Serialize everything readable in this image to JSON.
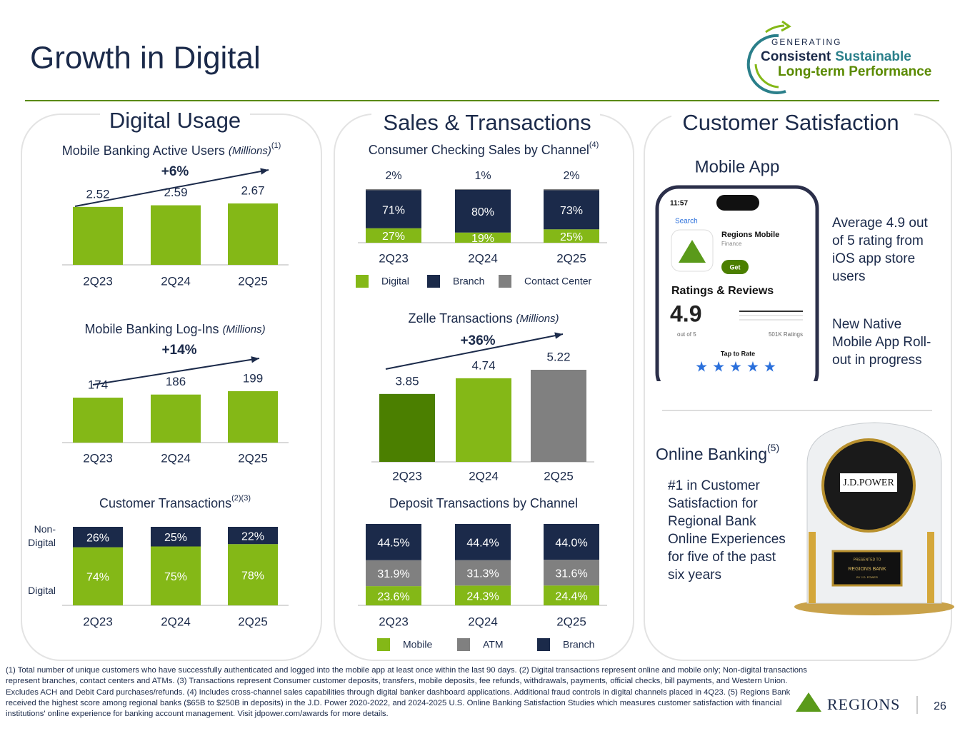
{
  "slide": {
    "title": "Growth in Digital",
    "logo": {
      "line1": "GENERATING",
      "word1": "Consistent",
      "word2": "Sustainable",
      "line3": "Long-term Performance"
    },
    "panels": [
      "Digital Usage",
      "Sales & Transactions",
      "Customer Satisfaction"
    ],
    "mobile_app": {
      "heading": "Mobile App",
      "time": "11:57",
      "back": "Search",
      "app_name": "Regions Mobile",
      "app_category": "Finance",
      "button": "Get",
      "ratings_heading": "Ratings & Reviews",
      "rating": "4.9",
      "out_of": "out of 5",
      "count": "501K Ratings",
      "tap": "Tap to Rate",
      "note1": "Average 4.9 out of 5 rating from iOS app store users",
      "note2": "New Native Mobile App Roll-out in progress"
    },
    "online_banking": {
      "heading": "Online Banking",
      "note": "(5)",
      "text": "#1 in Customer Satisfaction for Regional Bank Online Experiences for five of the past six years",
      "award_brand": "J.D.POWER",
      "plaque1": "PRESENTED TO",
      "plaque2": "REGIONS BANK",
      "plaque3": "BY J.D. POWER"
    },
    "footnote": "(1) Total number of unique customers who have successfully authenticated and logged into the mobile app at least once within the last 90 days. (2) Digital transactions represent online and mobile only; Non-digital transactions represent branches, contact centers and ATMs. (3) Transactions represent Consumer customer deposits, transfers, mobile deposits, fee refunds, withdrawals, payments, official checks, bill payments, and Western Union. Excludes ACH and Debit Card purchases/refunds. (4) Includes cross-channel sales capabilities through digital banker dashboard applications. Additional fraud controls in digital channels placed in 4Q23. (5) Regions Bank received the highest score among regional banks ($65B to $250B in deposits) in the J.D. Power 2020-2022, and 2024-2025 U.S. Online Banking Satisfaction Studies which measures customer satisfaction with financial institutions' online experience for banking account management. Visit jdpower.com/awards for more details.",
    "brand": "REGIONS",
    "page": "26"
  },
  "chart_data": [
    {
      "type": "bar",
      "title": "Mobile Banking Active Users",
      "subtitle": "(Millions)",
      "note": "(1)",
      "annotation": "+6%",
      "categories": [
        "2Q23",
        "2Q24",
        "2Q25"
      ],
      "values": [
        2.52,
        2.59,
        2.67
      ],
      "color": "#84b817"
    },
    {
      "type": "bar",
      "title": "Mobile Banking Log-Ins",
      "subtitle": "(Millions)",
      "annotation": "+14%",
      "categories": [
        "2Q23",
        "2Q24",
        "2Q25"
      ],
      "values": [
        174,
        186,
        199
      ],
      "color": "#84b817"
    },
    {
      "type": "stacked_bar",
      "title": "Customer Transactions",
      "note": "(2)(3)",
      "legend": "left",
      "categories": [
        "2Q23",
        "2Q24",
        "2Q25"
      ],
      "series": [
        {
          "name": "Digital",
          "color": "#84b817",
          "values": [
            74,
            75,
            78
          ],
          "value_labels": [
            "74%",
            "75%",
            "78%"
          ]
        },
        {
          "name": "Non-Digital",
          "color": "#1b2a4a",
          "values": [
            26,
            25,
            22
          ],
          "value_labels": [
            "26%",
            "25%",
            "22%"
          ]
        }
      ]
    },
    {
      "type": "stacked_bar",
      "title": "Consumer Checking Sales by Channel",
      "note": "(4)",
      "legend": "bottom",
      "categories": [
        "2Q23",
        "2Q24",
        "2Q25"
      ],
      "series": [
        {
          "name": "Digital",
          "color": "#84b817",
          "values": [
            27,
            19,
            25
          ],
          "value_labels": [
            "27%",
            "19%",
            "25%"
          ]
        },
        {
          "name": "Branch",
          "color": "#1b2a4a",
          "values": [
            71,
            80,
            73
          ],
          "value_labels": [
            "71%",
            "80%",
            "73%"
          ]
        },
        {
          "name": "Contact Center",
          "color": "#808080",
          "values": [
            2,
            1,
            2
          ],
          "value_labels": [
            "2%",
            "1%",
            "2%"
          ]
        }
      ]
    },
    {
      "type": "bar",
      "title": "Zelle Transactions",
      "subtitle": "(Millions)",
      "annotation": "+36%",
      "categories": [
        "2Q23",
        "2Q24",
        "2Q25"
      ],
      "values": [
        3.85,
        4.74,
        5.22
      ],
      "colors": [
        "#4b7f00",
        "#84b817",
        "#808080"
      ]
    },
    {
      "type": "stacked_bar",
      "title": "Deposit Transactions by Channel",
      "legend": "bottom",
      "categories": [
        "2Q23",
        "2Q24",
        "2Q25"
      ],
      "series": [
        {
          "name": "Mobile",
          "color": "#84b817",
          "values": [
            23.6,
            24.3,
            24.4
          ],
          "value_labels": [
            "23.6%",
            "24.3%",
            "24.4%"
          ]
        },
        {
          "name": "ATM",
          "color": "#808080",
          "values": [
            31.9,
            31.3,
            31.6
          ],
          "value_labels": [
            "31.9%",
            "31.3%",
            "31.6%"
          ]
        },
        {
          "name": "Branch",
          "color": "#1b2a4a",
          "values": [
            44.5,
            44.4,
            44.0
          ],
          "value_labels": [
            "44.5%",
            "44.4%",
            "44.0%"
          ]
        }
      ]
    }
  ]
}
